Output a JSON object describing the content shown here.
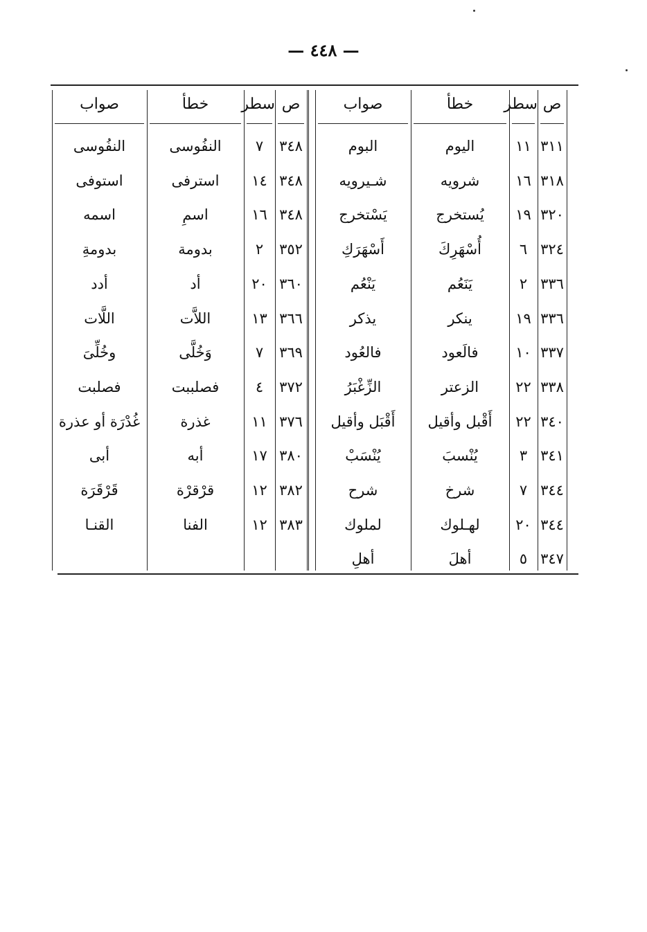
{
  "page_number": "— ٤٤٨ —",
  "headers": {
    "page": "ص",
    "line": "سطر",
    "wrong": "خطأ",
    "correct": "صواب"
  },
  "right_table": [
    {
      "page": "٣١١",
      "line": "١١",
      "wrong": "اليوم",
      "correct": "البوم"
    },
    {
      "page": "٣١٨",
      "line": "١٦",
      "wrong": "شرويه",
      "correct": "شـيرويه"
    },
    {
      "page": "٣٢٠",
      "line": "١٩",
      "wrong": "يُستخرج",
      "correct": "يَسْتخرج"
    },
    {
      "page": "٣٢٤",
      "line": "٦",
      "wrong": "أُسْهَرِكَ",
      "correct": "أَسْهَرَكِ"
    },
    {
      "page": "٣٣٦",
      "line": "٢",
      "wrong": "يَنَعُم",
      "correct": "يَنْعُم"
    },
    {
      "page": "٣٣٦",
      "line": "١٩",
      "wrong": "ينكر",
      "correct": "يذكر"
    },
    {
      "page": "٣٣٧",
      "line": "١٠",
      "wrong": "فالَعود",
      "correct": "فالعُود"
    },
    {
      "page": "٣٣٨",
      "line": "٢٢",
      "wrong": "الزعتر",
      "correct": "الزِّغْبَرُ"
    },
    {
      "page": "٣٤٠",
      "line": "٢٢",
      "wrong": "أَقْبل وأقيل",
      "correct": "أَقْبَل وأقيل"
    },
    {
      "page": "٣٤١",
      "line": "٣",
      "wrong": "يُنْسبَ",
      "correct": "يُنْسَبْ"
    },
    {
      "page": "٣٤٤",
      "line": "٧",
      "wrong": "شرخ",
      "correct": "شرح"
    },
    {
      "page": "٣٤٤",
      "line": "٢٠",
      "wrong": "لهـلوك",
      "correct": "لملوك"
    },
    {
      "page": "٣٤٧",
      "line": "٥",
      "wrong": "أهلَ",
      "correct": "أهلِ"
    }
  ],
  "left_table": [
    {
      "page": "٣٤٨",
      "line": "٧",
      "wrong": "النفُوسى",
      "correct": "النفُوسى"
    },
    {
      "page": "٣٤٨",
      "line": "١٤",
      "wrong": "استرفى",
      "correct": "استوفى"
    },
    {
      "page": "٣٤٨",
      "line": "١٦",
      "wrong": "اسمِ",
      "correct": "اسمه"
    },
    {
      "page": "٣٥٢",
      "line": "٢",
      "wrong": "بدومة",
      "correct": "بدومةِ"
    },
    {
      "page": "٣٦٠",
      "line": "٢٠",
      "wrong": "أد",
      "correct": "أدد"
    },
    {
      "page": "٣٦٦",
      "line": "١٣",
      "wrong": "اللاَّت",
      "correct": "اللَّات"
    },
    {
      "page": "٣٦٩",
      "line": "٧",
      "wrong": "وَخُلَّى",
      "correct": "وخُلِّىَ"
    },
    {
      "page": "٣٧٢",
      "line": "٤",
      "wrong": "فصلببت",
      "correct": "فصلبت"
    },
    {
      "page": "٣٧٦",
      "line": "١١",
      "wrong": "غذرة",
      "correct": "غُدْرَة أو عذرة"
    },
    {
      "page": "٣٨٠",
      "line": "١٧",
      "wrong": "أبه",
      "correct": "أبى"
    },
    {
      "page": "٣٨٢",
      "line": "١٢",
      "wrong": "قرْقرْة",
      "correct": "قَرْقَرَة"
    },
    {
      "page": "٣٨٣",
      "line": "١٢",
      "wrong": "الفنا",
      "correct": "القنـا"
    }
  ]
}
